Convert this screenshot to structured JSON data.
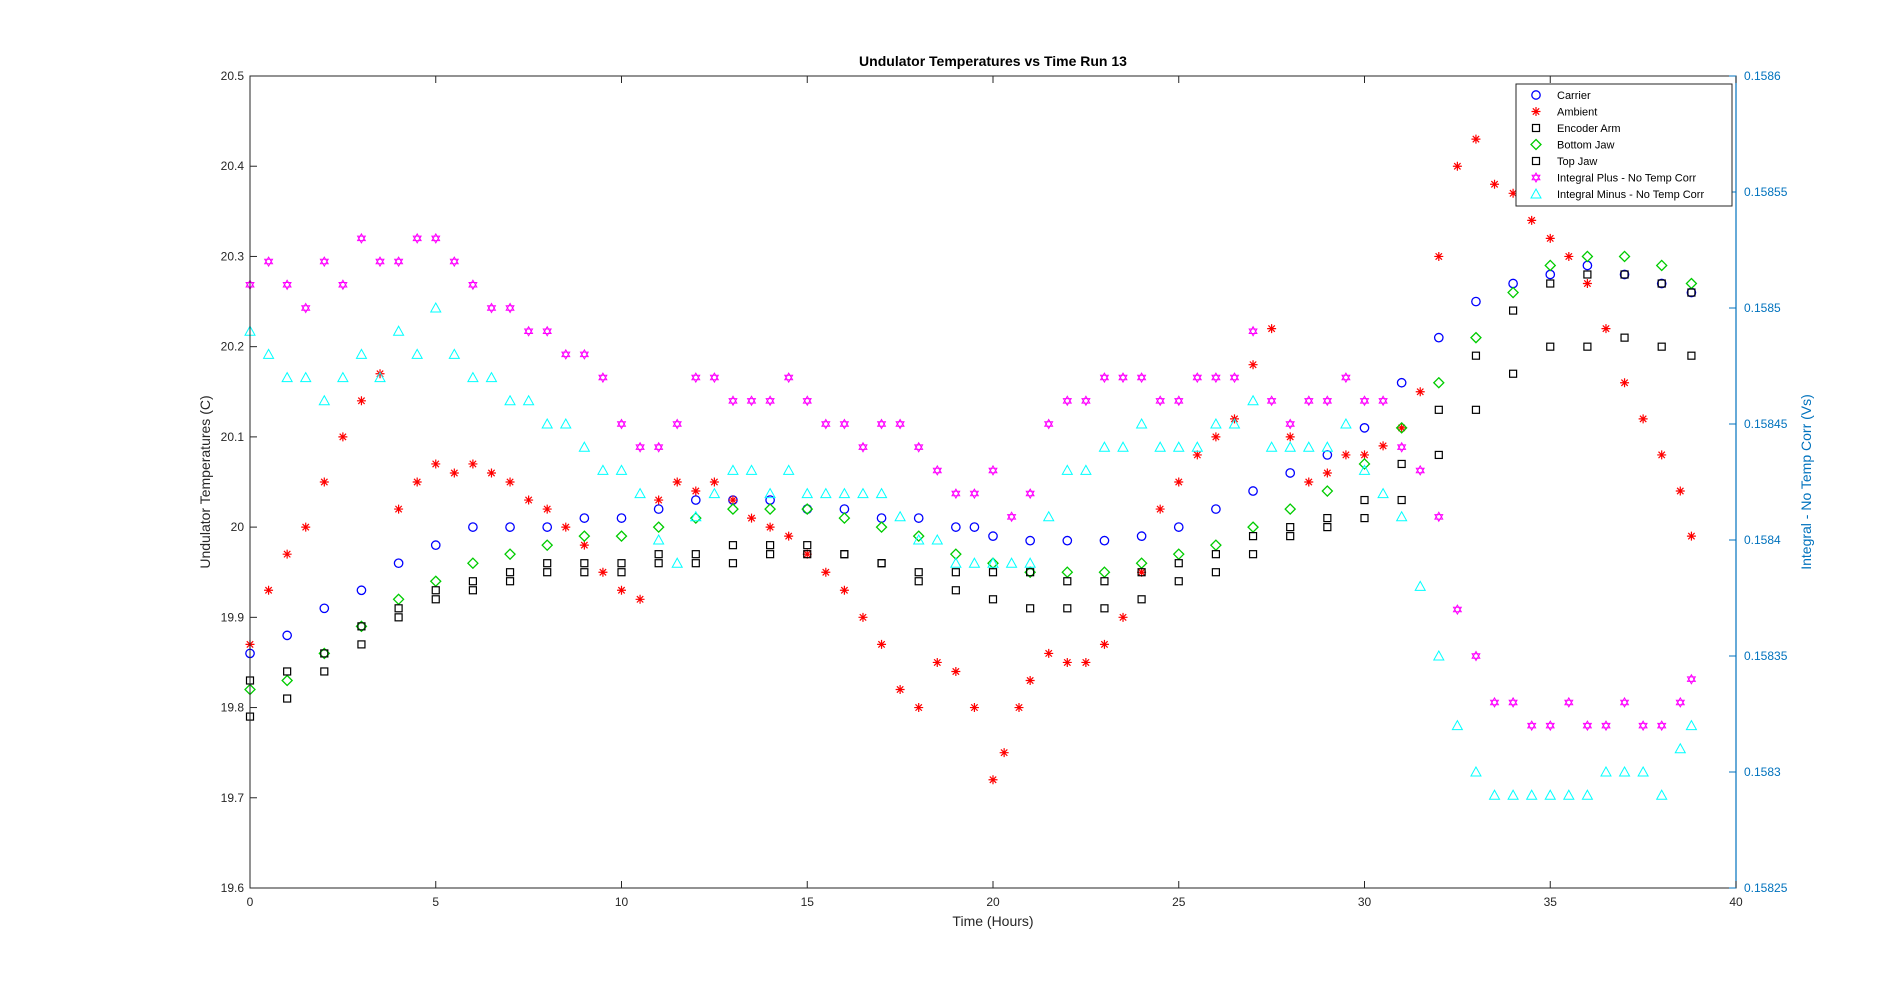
{
  "chart_data": {
    "type": "scatter",
    "title": "Undulator Temperatures vs Time Run 13",
    "xlabel": "Time (Hours)",
    "ylabel": "Undulator Temperatures (C)",
    "y2label": "Integral -  No Temp Corr (Vs)",
    "xlim": [
      0,
      40
    ],
    "ylim": [
      19.6,
      20.5
    ],
    "y2lim": [
      0.15825,
      0.1586
    ],
    "xticks": [
      "0",
      "5",
      "10",
      "15",
      "20",
      "25",
      "30",
      "35",
      "40"
    ],
    "yticks": [
      "19.6",
      "19.7",
      "19.8",
      "19.9",
      "20",
      "20.1",
      "20.2",
      "20.3",
      "20.4",
      "20.5"
    ],
    "y2ticks": [
      "0.15825",
      "0.1583",
      "0.15835",
      "0.1584",
      "0.15845",
      "0.1585",
      "0.15855",
      "0.1586"
    ],
    "grid": false,
    "legend_position": "top-right",
    "axis_colors": {
      "left": "#262626",
      "right": "#0072bd"
    },
    "series": [
      {
        "name": "Carrier",
        "marker": "circle",
        "color": "#0000ff",
        "axis": "left",
        "x": [
          0,
          1,
          2,
          3,
          4,
          5,
          6,
          7,
          8,
          9,
          10,
          11,
          12,
          13,
          14,
          15,
          16,
          17,
          18,
          19,
          19.5,
          20,
          21,
          22,
          23,
          24,
          25,
          26,
          27,
          28,
          29,
          30,
          31,
          32,
          33,
          34,
          35,
          36,
          37,
          38,
          38.8
        ],
        "y": [
          19.86,
          19.88,
          19.91,
          19.93,
          19.96,
          19.98,
          20.0,
          20.0,
          20.0,
          20.01,
          20.01,
          20.02,
          20.03,
          20.03,
          20.03,
          20.02,
          20.02,
          20.01,
          20.01,
          20.0,
          20.0,
          19.99,
          19.985,
          19.985,
          19.985,
          19.99,
          20.0,
          20.02,
          20.04,
          20.06,
          20.08,
          20.11,
          20.16,
          20.21,
          20.25,
          20.27,
          20.28,
          20.29,
          20.28,
          20.27,
          20.26
        ]
      },
      {
        "name": "Ambient",
        "marker": "star",
        "color": "#ff0000",
        "axis": "left",
        "x": [
          0,
          0.5,
          1,
          1.5,
          2,
          2.5,
          3,
          3.5,
          4,
          4.5,
          5,
          5.5,
          6,
          6.5,
          7,
          7.5,
          8,
          8.5,
          9,
          9.5,
          10,
          10.5,
          11,
          11.5,
          12,
          12.5,
          13,
          13.5,
          14,
          14.5,
          15,
          15.5,
          16,
          16.5,
          17,
          17.5,
          18,
          18.5,
          19,
          19.5,
          20,
          20.3,
          20.7,
          21,
          21.5,
          22,
          22.5,
          23,
          23.5,
          24,
          24.5,
          25,
          25.5,
          26,
          26.5,
          27,
          27.5,
          28,
          28.5,
          29,
          29.5,
          30,
          30.5,
          31,
          31.5,
          32,
          32.5,
          33,
          33.5,
          34,
          34.5,
          35,
          35.5,
          36,
          36.5,
          37,
          37.5,
          38,
          38.5,
          38.8
        ],
        "y": [
          19.87,
          19.93,
          19.97,
          20.0,
          20.05,
          20.1,
          20.14,
          20.17,
          20.02,
          20.05,
          20.07,
          20.06,
          20.07,
          20.06,
          20.05,
          20.03,
          20.02,
          20.0,
          19.98,
          19.95,
          19.93,
          19.92,
          20.03,
          20.05,
          20.04,
          20.05,
          20.03,
          20.01,
          20.0,
          19.99,
          19.97,
          19.95,
          19.93,
          19.9,
          19.87,
          19.82,
          19.8,
          19.85,
          19.84,
          19.8,
          19.72,
          19.75,
          19.8,
          19.83,
          19.86,
          19.85,
          19.85,
          19.87,
          19.9,
          19.95,
          20.02,
          20.05,
          20.08,
          20.1,
          20.12,
          20.18,
          20.22,
          20.1,
          20.05,
          20.06,
          20.08,
          20.08,
          20.09,
          20.11,
          20.15,
          20.3,
          20.4,
          20.43,
          20.38,
          20.37,
          20.34,
          20.32,
          20.3,
          20.27,
          20.22,
          20.16,
          20.12,
          20.08,
          20.04,
          19.99
        ]
      },
      {
        "name": "Encoder Arm",
        "marker": "square",
        "color": "#000000",
        "axis": "left",
        "x": [
          0,
          1,
          2,
          3,
          4,
          5,
          6,
          7,
          8,
          9,
          10,
          11,
          12,
          13,
          14,
          15,
          16,
          17,
          18,
          19,
          20,
          21,
          22,
          23,
          24,
          25,
          26,
          27,
          28,
          29,
          30,
          31,
          32,
          33,
          34,
          35,
          36,
          37,
          38,
          38.8
        ],
        "y": [
          19.79,
          19.81,
          19.84,
          19.87,
          19.9,
          19.92,
          19.93,
          19.94,
          19.95,
          19.95,
          19.95,
          19.96,
          19.96,
          19.96,
          19.97,
          19.97,
          19.97,
          19.96,
          19.94,
          19.93,
          19.92,
          19.91,
          19.91,
          19.91,
          19.92,
          19.94,
          19.95,
          19.97,
          19.99,
          20.0,
          20.01,
          20.03,
          20.08,
          20.13,
          20.17,
          20.2,
          20.2,
          20.21,
          20.2,
          20.19
        ]
      },
      {
        "name": "Bottom Jaw",
        "marker": "diamond",
        "color": "#00cc00",
        "axis": "left",
        "x": [
          0,
          1,
          2,
          3,
          4,
          5,
          6,
          7,
          8,
          9,
          10,
          11,
          12,
          13,
          14,
          15,
          16,
          17,
          18,
          19,
          20,
          21,
          22,
          23,
          24,
          25,
          26,
          27,
          28,
          29,
          30,
          31,
          32,
          33,
          34,
          35,
          36,
          37,
          38,
          38.8
        ],
        "y": [
          19.82,
          19.83,
          19.86,
          19.89,
          19.92,
          19.94,
          19.96,
          19.97,
          19.98,
          19.99,
          19.99,
          20.0,
          20.01,
          20.02,
          20.02,
          20.02,
          20.01,
          20.0,
          19.99,
          19.97,
          19.96,
          19.95,
          19.95,
          19.95,
          19.96,
          19.97,
          19.98,
          20.0,
          20.02,
          20.04,
          20.07,
          20.11,
          20.16,
          20.21,
          20.26,
          20.29,
          20.3,
          20.3,
          20.29,
          20.27
        ]
      },
      {
        "name": "Top Jaw",
        "marker": "square",
        "color": "#000000",
        "axis": "left",
        "x": [
          0,
          1,
          2,
          3,
          4,
          5,
          6,
          7,
          8,
          9,
          10,
          11,
          12,
          13,
          14,
          15,
          16,
          17,
          18,
          19,
          20,
          21,
          22,
          23,
          24,
          25,
          26,
          27,
          28,
          29,
          30,
          31,
          32,
          33,
          34,
          35,
          36,
          37,
          38,
          38.8
        ],
        "y": [
          19.83,
          19.84,
          19.86,
          19.89,
          19.91,
          19.93,
          19.94,
          19.95,
          19.96,
          19.96,
          19.96,
          19.97,
          19.97,
          19.98,
          19.98,
          19.98,
          19.97,
          19.96,
          19.95,
          19.95,
          19.95,
          19.95,
          19.94,
          19.94,
          19.95,
          19.96,
          19.97,
          19.99,
          20.0,
          20.01,
          20.03,
          20.07,
          20.13,
          20.19,
          20.24,
          20.27,
          20.28,
          20.28,
          20.27,
          20.26
        ]
      },
      {
        "name": "Integral Plus -  No Temp Corr",
        "marker": "hexagram",
        "color": "#ff00ff",
        "axis": "right",
        "x": [
          0,
          0.5,
          1,
          1.5,
          2,
          2.5,
          3,
          3.5,
          4,
          4.5,
          5,
          5.5,
          6,
          6.5,
          7,
          7.5,
          8,
          8.5,
          9,
          9.5,
          10,
          10.5,
          11,
          11.5,
          12,
          12.5,
          13,
          13.5,
          14,
          14.5,
          15,
          15.5,
          16,
          16.5,
          17,
          17.5,
          18,
          18.5,
          19,
          19.5,
          20,
          20.5,
          21,
          21.5,
          22,
          22.5,
          23,
          23.5,
          24,
          24.5,
          25,
          25.5,
          26,
          26.5,
          27,
          27.5,
          28,
          28.5,
          29,
          29.5,
          30,
          30.5,
          31,
          31.5,
          32,
          32.5,
          33,
          33.5,
          34,
          34.5,
          35,
          35.5,
          36,
          36.5,
          37,
          37.5,
          38,
          38.5,
          38.8
        ],
        "y": [
          0.15851,
          0.15852,
          0.15851,
          0.1585,
          0.15852,
          0.15851,
          0.15853,
          0.15852,
          0.15852,
          0.15853,
          0.15853,
          0.15852,
          0.15851,
          0.1585,
          0.1585,
          0.15849,
          0.15849,
          0.15848,
          0.15848,
          0.15847,
          0.15845,
          0.15844,
          0.15844,
          0.15845,
          0.15847,
          0.15847,
          0.15846,
          0.15846,
          0.15846,
          0.15847,
          0.15846,
          0.15845,
          0.15845,
          0.15844,
          0.15845,
          0.15845,
          0.15844,
          0.15843,
          0.15842,
          0.15842,
          0.15843,
          0.15841,
          0.15842,
          0.15845,
          0.15846,
          0.15846,
          0.15847,
          0.15847,
          0.15847,
          0.15846,
          0.15846,
          0.15847,
          0.15847,
          0.15847,
          0.15849,
          0.15846,
          0.15845,
          0.15846,
          0.15846,
          0.15847,
          0.15846,
          0.15846,
          0.15844,
          0.15843,
          0.15841,
          0.15837,
          0.15835,
          0.15833,
          0.15833,
          0.15832,
          0.15832,
          0.15833,
          0.15832,
          0.15832,
          0.15833,
          0.15832,
          0.15832,
          0.15833,
          0.15834
        ]
      },
      {
        "name": "Integral Minus -  No Temp Corr",
        "marker": "triangle",
        "color": "#00ffff",
        "axis": "right",
        "x": [
          0,
          0.5,
          1,
          1.5,
          2,
          2.5,
          3,
          3.5,
          4,
          4.5,
          5,
          5.5,
          6,
          6.5,
          7,
          7.5,
          8,
          8.5,
          9,
          9.5,
          10,
          10.5,
          11,
          11.5,
          12,
          12.5,
          13,
          13.5,
          14,
          14.5,
          15,
          15.5,
          16,
          16.5,
          17,
          17.5,
          18,
          18.5,
          19,
          19.5,
          20,
          20.5,
          21,
          21.5,
          22,
          22.5,
          23,
          23.5,
          24,
          24.5,
          25,
          25.5,
          26,
          26.5,
          27,
          27.5,
          28,
          28.5,
          29,
          29.5,
          30,
          30.5,
          31,
          31.5,
          32,
          32.5,
          33,
          33.5,
          34,
          34.5,
          35,
          35.5,
          36,
          36.5,
          37,
          37.5,
          38,
          38.5,
          38.8
        ],
        "y": [
          0.15849,
          0.15848,
          0.15847,
          0.15847,
          0.15846,
          0.15847,
          0.15848,
          0.15847,
          0.15849,
          0.15848,
          0.1585,
          0.15848,
          0.15847,
          0.15847,
          0.15846,
          0.15846,
          0.15845,
          0.15845,
          0.15844,
          0.15843,
          0.15843,
          0.15842,
          0.1584,
          0.15839,
          0.15841,
          0.15842,
          0.15843,
          0.15843,
          0.15842,
          0.15843,
          0.15842,
          0.15842,
          0.15842,
          0.15842,
          0.15842,
          0.15841,
          0.1584,
          0.1584,
          0.15839,
          0.15839,
          0.15839,
          0.15839,
          0.15839,
          0.15841,
          0.15843,
          0.15843,
          0.15844,
          0.15844,
          0.15845,
          0.15844,
          0.15844,
          0.15844,
          0.15845,
          0.15845,
          0.15846,
          0.15844,
          0.15844,
          0.15844,
          0.15844,
          0.15845,
          0.15843,
          0.15842,
          0.15841,
          0.15838,
          0.15835,
          0.15832,
          0.1583,
          0.15829,
          0.15829,
          0.15829,
          0.15829,
          0.15829,
          0.15829,
          0.1583,
          0.1583,
          0.1583,
          0.15829,
          0.15831,
          0.15832
        ]
      }
    ]
  }
}
